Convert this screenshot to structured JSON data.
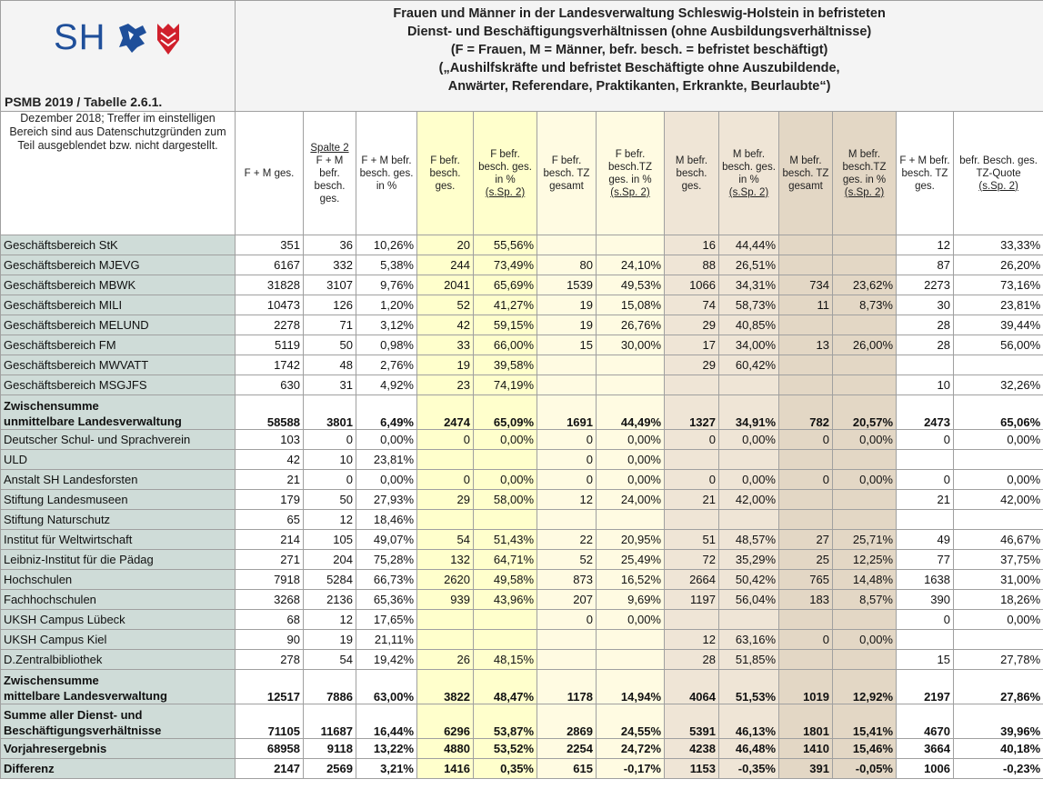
{
  "header": {
    "logo": "SH",
    "subtitle": "PSMB 2019 / Tabelle 2.6.1.",
    "title_lines": [
      "Frauen und Männer in der Landesverwaltung Schleswig-Holstein in befristeten",
      "Dienst- und Beschäftigungsverhältnissen (ohne Ausbildungsverhältnisse)",
      "(F = Frauen, M = Männer, befr. besch. = befristet beschäftigt)",
      "(„Aushilfskräfte und befristet Beschäftigte ohne Auszubildende,",
      "Anwärter, Referendare, Praktikanten, Erkrankte, Beurlaubte“)"
    ]
  },
  "table": {
    "note": "Dezember 2018; Treffer im einstelligen Bereich sind aus Datenschutzgründen zum Teil ausgeblendet bzw. nicht dargestellt.",
    "columns": [
      {
        "label": "F + M ges."
      },
      {
        "above": "Spalte 2",
        "label": "F + M befr. besch. ges."
      },
      {
        "label": "F + M befr. besch. ges. in %"
      },
      {
        "label": "F befr. besch. ges."
      },
      {
        "label": "F befr. besch. ges. in %",
        "below": "(s.Sp. 2)"
      },
      {
        "label": "F befr. besch. TZ gesamt"
      },
      {
        "label": "F befr. besch.TZ ges. in %",
        "below": "(s.Sp. 2)"
      },
      {
        "label": "M befr. besch. ges."
      },
      {
        "label": "M befr. besch. ges. in %",
        "below": "(s.Sp. 2)"
      },
      {
        "label": "M befr. besch. TZ gesamt"
      },
      {
        "label": "M befr. besch.TZ ges. in %",
        "below": "(s.Sp. 2)"
      },
      {
        "label": "F + M befr. besch. TZ ges."
      },
      {
        "label": "befr. Besch. ges. TZ-Quote",
        "below": "(s.Sp. 2)"
      }
    ],
    "rows": [
      {
        "label": "Geschäftsbereich StK",
        "cells": [
          351,
          36,
          "10,26%",
          20,
          "55,56%",
          null,
          null,
          16,
          "44,44%",
          null,
          null,
          12,
          "33,33%"
        ]
      },
      {
        "label": "Geschäftsbereich MJEVG",
        "cells": [
          6167,
          332,
          "5,38%",
          244,
          "73,49%",
          80,
          "24,10%",
          88,
          "26,51%",
          null,
          null,
          87,
          "26,20%"
        ]
      },
      {
        "label": "Geschäftsbereich MBWK",
        "cells": [
          31828,
          3107,
          "9,76%",
          2041,
          "65,69%",
          1539,
          "49,53%",
          1066,
          "34,31%",
          734,
          "23,62%",
          2273,
          "73,16%"
        ]
      },
      {
        "label": "Geschäftsbereich MILI",
        "cells": [
          10473,
          126,
          "1,20%",
          52,
          "41,27%",
          19,
          "15,08%",
          74,
          "58,73%",
          11,
          "8,73%",
          30,
          "23,81%"
        ]
      },
      {
        "label": "Geschäftsbereich MELUND",
        "cells": [
          2278,
          71,
          "3,12%",
          42,
          "59,15%",
          19,
          "26,76%",
          29,
          "40,85%",
          null,
          null,
          28,
          "39,44%"
        ]
      },
      {
        "label": "Geschäftsbereich FM",
        "cells": [
          5119,
          50,
          "0,98%",
          33,
          "66,00%",
          15,
          "30,00%",
          17,
          "34,00%",
          13,
          "26,00%",
          28,
          "56,00%"
        ]
      },
      {
        "label": "Geschäftsbereich MWVATT",
        "cells": [
          1742,
          48,
          "2,76%",
          19,
          "39,58%",
          null,
          null,
          29,
          "60,42%",
          null,
          null,
          null,
          null
        ]
      },
      {
        "label": "Geschäftsbereich MSGJFS",
        "cells": [
          630,
          31,
          "4,92%",
          23,
          "74,19%",
          null,
          null,
          null,
          null,
          null,
          null,
          10,
          "32,26%"
        ]
      },
      {
        "label": "Zwischensumme\nunmittelbare Landesverwaltung",
        "bold": true,
        "cells": [
          58588,
          3801,
          "6,49%",
          2474,
          "65,09%",
          1691,
          "44,49%",
          1327,
          "34,91%",
          782,
          "20,57%",
          2473,
          "65,06%"
        ]
      },
      {
        "label": "Deutscher Schul- und Sprachverein",
        "cells": [
          103,
          0,
          "0,00%",
          0,
          "0,00%",
          0,
          "0,00%",
          0,
          "0,00%",
          0,
          "0,00%",
          0,
          "0,00%"
        ]
      },
      {
        "label": "ULD",
        "cells": [
          42,
          10,
          "23,81%",
          null,
          null,
          0,
          "0,00%",
          null,
          null,
          null,
          null,
          null,
          null
        ]
      },
      {
        "label": "Anstalt SH Landesforsten",
        "cells": [
          21,
          0,
          "0,00%",
          0,
          "0,00%",
          0,
          "0,00%",
          0,
          "0,00%",
          0,
          "0,00%",
          0,
          "0,00%"
        ]
      },
      {
        "label": "Stiftung Landesmuseen",
        "cells": [
          179,
          50,
          "27,93%",
          29,
          "58,00%",
          12,
          "24,00%",
          21,
          "42,00%",
          null,
          null,
          21,
          "42,00%"
        ]
      },
      {
        "label": "Stiftung Naturschutz",
        "cells": [
          65,
          12,
          "18,46%",
          null,
          null,
          null,
          null,
          null,
          null,
          null,
          null,
          null,
          null
        ]
      },
      {
        "label": "Institut für Weltwirtschaft",
        "cells": [
          214,
          105,
          "49,07%",
          54,
          "51,43%",
          22,
          "20,95%",
          51,
          "48,57%",
          27,
          "25,71%",
          49,
          "46,67%"
        ]
      },
      {
        "label": "Leibniz-Institut für die Pädag",
        "cells": [
          271,
          204,
          "75,28%",
          132,
          "64,71%",
          52,
          "25,49%",
          72,
          "35,29%",
          25,
          "12,25%",
          77,
          "37,75%"
        ]
      },
      {
        "label": "Hochschulen",
        "cells": [
          7918,
          5284,
          "66,73%",
          2620,
          "49,58%",
          873,
          "16,52%",
          2664,
          "50,42%",
          765,
          "14,48%",
          1638,
          "31,00%"
        ]
      },
      {
        "label": "Fachhochschulen",
        "cells": [
          3268,
          2136,
          "65,36%",
          939,
          "43,96%",
          207,
          "9,69%",
          1197,
          "56,04%",
          183,
          "8,57%",
          390,
          "18,26%"
        ]
      },
      {
        "label": "UKSH Campus Lübeck",
        "cells": [
          68,
          12,
          "17,65%",
          null,
          null,
          0,
          "0,00%",
          null,
          null,
          null,
          null,
          0,
          "0,00%"
        ]
      },
      {
        "label": "UKSH Campus Kiel",
        "cells": [
          90,
          19,
          "21,11%",
          null,
          null,
          null,
          null,
          12,
          "63,16%",
          0,
          "0,00%",
          null,
          null
        ]
      },
      {
        "label": "D.Zentralbibliothek",
        "cells": [
          278,
          54,
          "19,42%",
          26,
          "48,15%",
          null,
          null,
          28,
          "51,85%",
          null,
          null,
          15,
          "27,78%"
        ]
      },
      {
        "label": "Zwischensumme\nmittelbare Landesverwaltung",
        "bold": true,
        "cells": [
          12517,
          7886,
          "63,00%",
          3822,
          "48,47%",
          1178,
          "14,94%",
          4064,
          "51,53%",
          1019,
          "12,92%",
          2197,
          "27,86%"
        ]
      },
      {
        "label": "Summe aller Dienst- und\nBeschäftigungsverhältnisse",
        "bold": true,
        "cells": [
          71105,
          11687,
          "16,44%",
          6296,
          "53,87%",
          2869,
          "24,55%",
          5391,
          "46,13%",
          1801,
          "15,41%",
          4670,
          "39,96%"
        ]
      },
      {
        "label": "Vorjahresergebnis",
        "bold": true,
        "cells": [
          68958,
          9118,
          "13,22%",
          4880,
          "53,52%",
          2254,
          "24,72%",
          4238,
          "46,48%",
          1410,
          "15,46%",
          3664,
          "40,18%"
        ]
      },
      {
        "label": "Differenz",
        "bold": true,
        "cells": [
          2147,
          2569,
          "3,21%",
          1416,
          "0,35%",
          615,
          "-0,17%",
          1153,
          "-0,35%",
          391,
          "-0,05%",
          1006,
          "-0,23%"
        ]
      }
    ]
  }
}
